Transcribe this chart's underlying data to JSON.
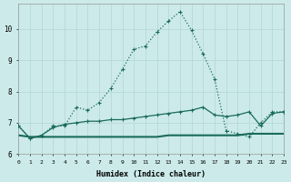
{
  "xlabel": "Humidex (Indice chaleur)",
  "ylabel": "",
  "bg_color": "#cceaea",
  "grid_color": "#b8d8d8",
  "line_color": "#1a6b5a",
  "xlim": [
    0,
    23
  ],
  "ylim": [
    6.0,
    10.8
  ],
  "yticks": [
    6,
    7,
    8,
    9,
    10
  ],
  "xticks": [
    0,
    1,
    2,
    3,
    4,
    5,
    6,
    7,
    8,
    9,
    10,
    11,
    12,
    13,
    14,
    15,
    16,
    17,
    18,
    19,
    20,
    21,
    22,
    23
  ],
  "xtick_labels": [
    "0",
    "1",
    "2",
    "3",
    "4",
    "5",
    "6",
    "7",
    "8",
    "9",
    "10",
    "11",
    "12",
    "13",
    "14",
    "15",
    "16",
    "17",
    "18",
    "19",
    "20",
    "21",
    "22",
    "23"
  ],
  "line1_x": [
    0,
    1,
    2,
    3,
    4,
    5,
    6,
    7,
    8,
    9,
    10,
    11,
    12,
    13,
    14,
    15,
    16,
    17,
    18,
    19,
    20,
    21,
    22,
    23
  ],
  "line1_y": [
    6.9,
    6.5,
    6.6,
    6.9,
    6.9,
    7.5,
    7.4,
    7.65,
    8.1,
    8.7,
    9.35,
    9.45,
    9.9,
    10.25,
    10.55,
    9.95,
    9.2,
    8.4,
    6.75,
    6.65,
    6.55,
    7.0,
    7.35,
    7.35
  ],
  "line2_x": [
    0,
    1,
    2,
    3,
    4,
    5,
    6,
    7,
    8,
    9,
    10,
    11,
    12,
    13,
    14,
    15,
    16,
    17,
    18,
    19,
    20,
    21,
    22,
    23
  ],
  "line2_y": [
    6.9,
    6.5,
    6.6,
    6.85,
    6.95,
    7.0,
    7.05,
    7.05,
    7.1,
    7.1,
    7.15,
    7.2,
    7.25,
    7.3,
    7.35,
    7.4,
    7.5,
    7.25,
    7.2,
    7.25,
    7.35,
    6.9,
    7.3,
    7.35
  ],
  "line3_x": [
    0,
    1,
    2,
    3,
    4,
    5,
    6,
    7,
    8,
    9,
    10,
    11,
    12,
    13,
    14,
    15,
    16,
    17,
    18,
    19,
    20,
    21,
    22,
    23
  ],
  "line3_y": [
    6.6,
    6.55,
    6.55,
    6.55,
    6.55,
    6.55,
    6.55,
    6.55,
    6.55,
    6.55,
    6.55,
    6.55,
    6.55,
    6.6,
    6.6,
    6.6,
    6.6,
    6.6,
    6.6,
    6.6,
    6.65,
    6.65,
    6.65,
    6.65
  ]
}
